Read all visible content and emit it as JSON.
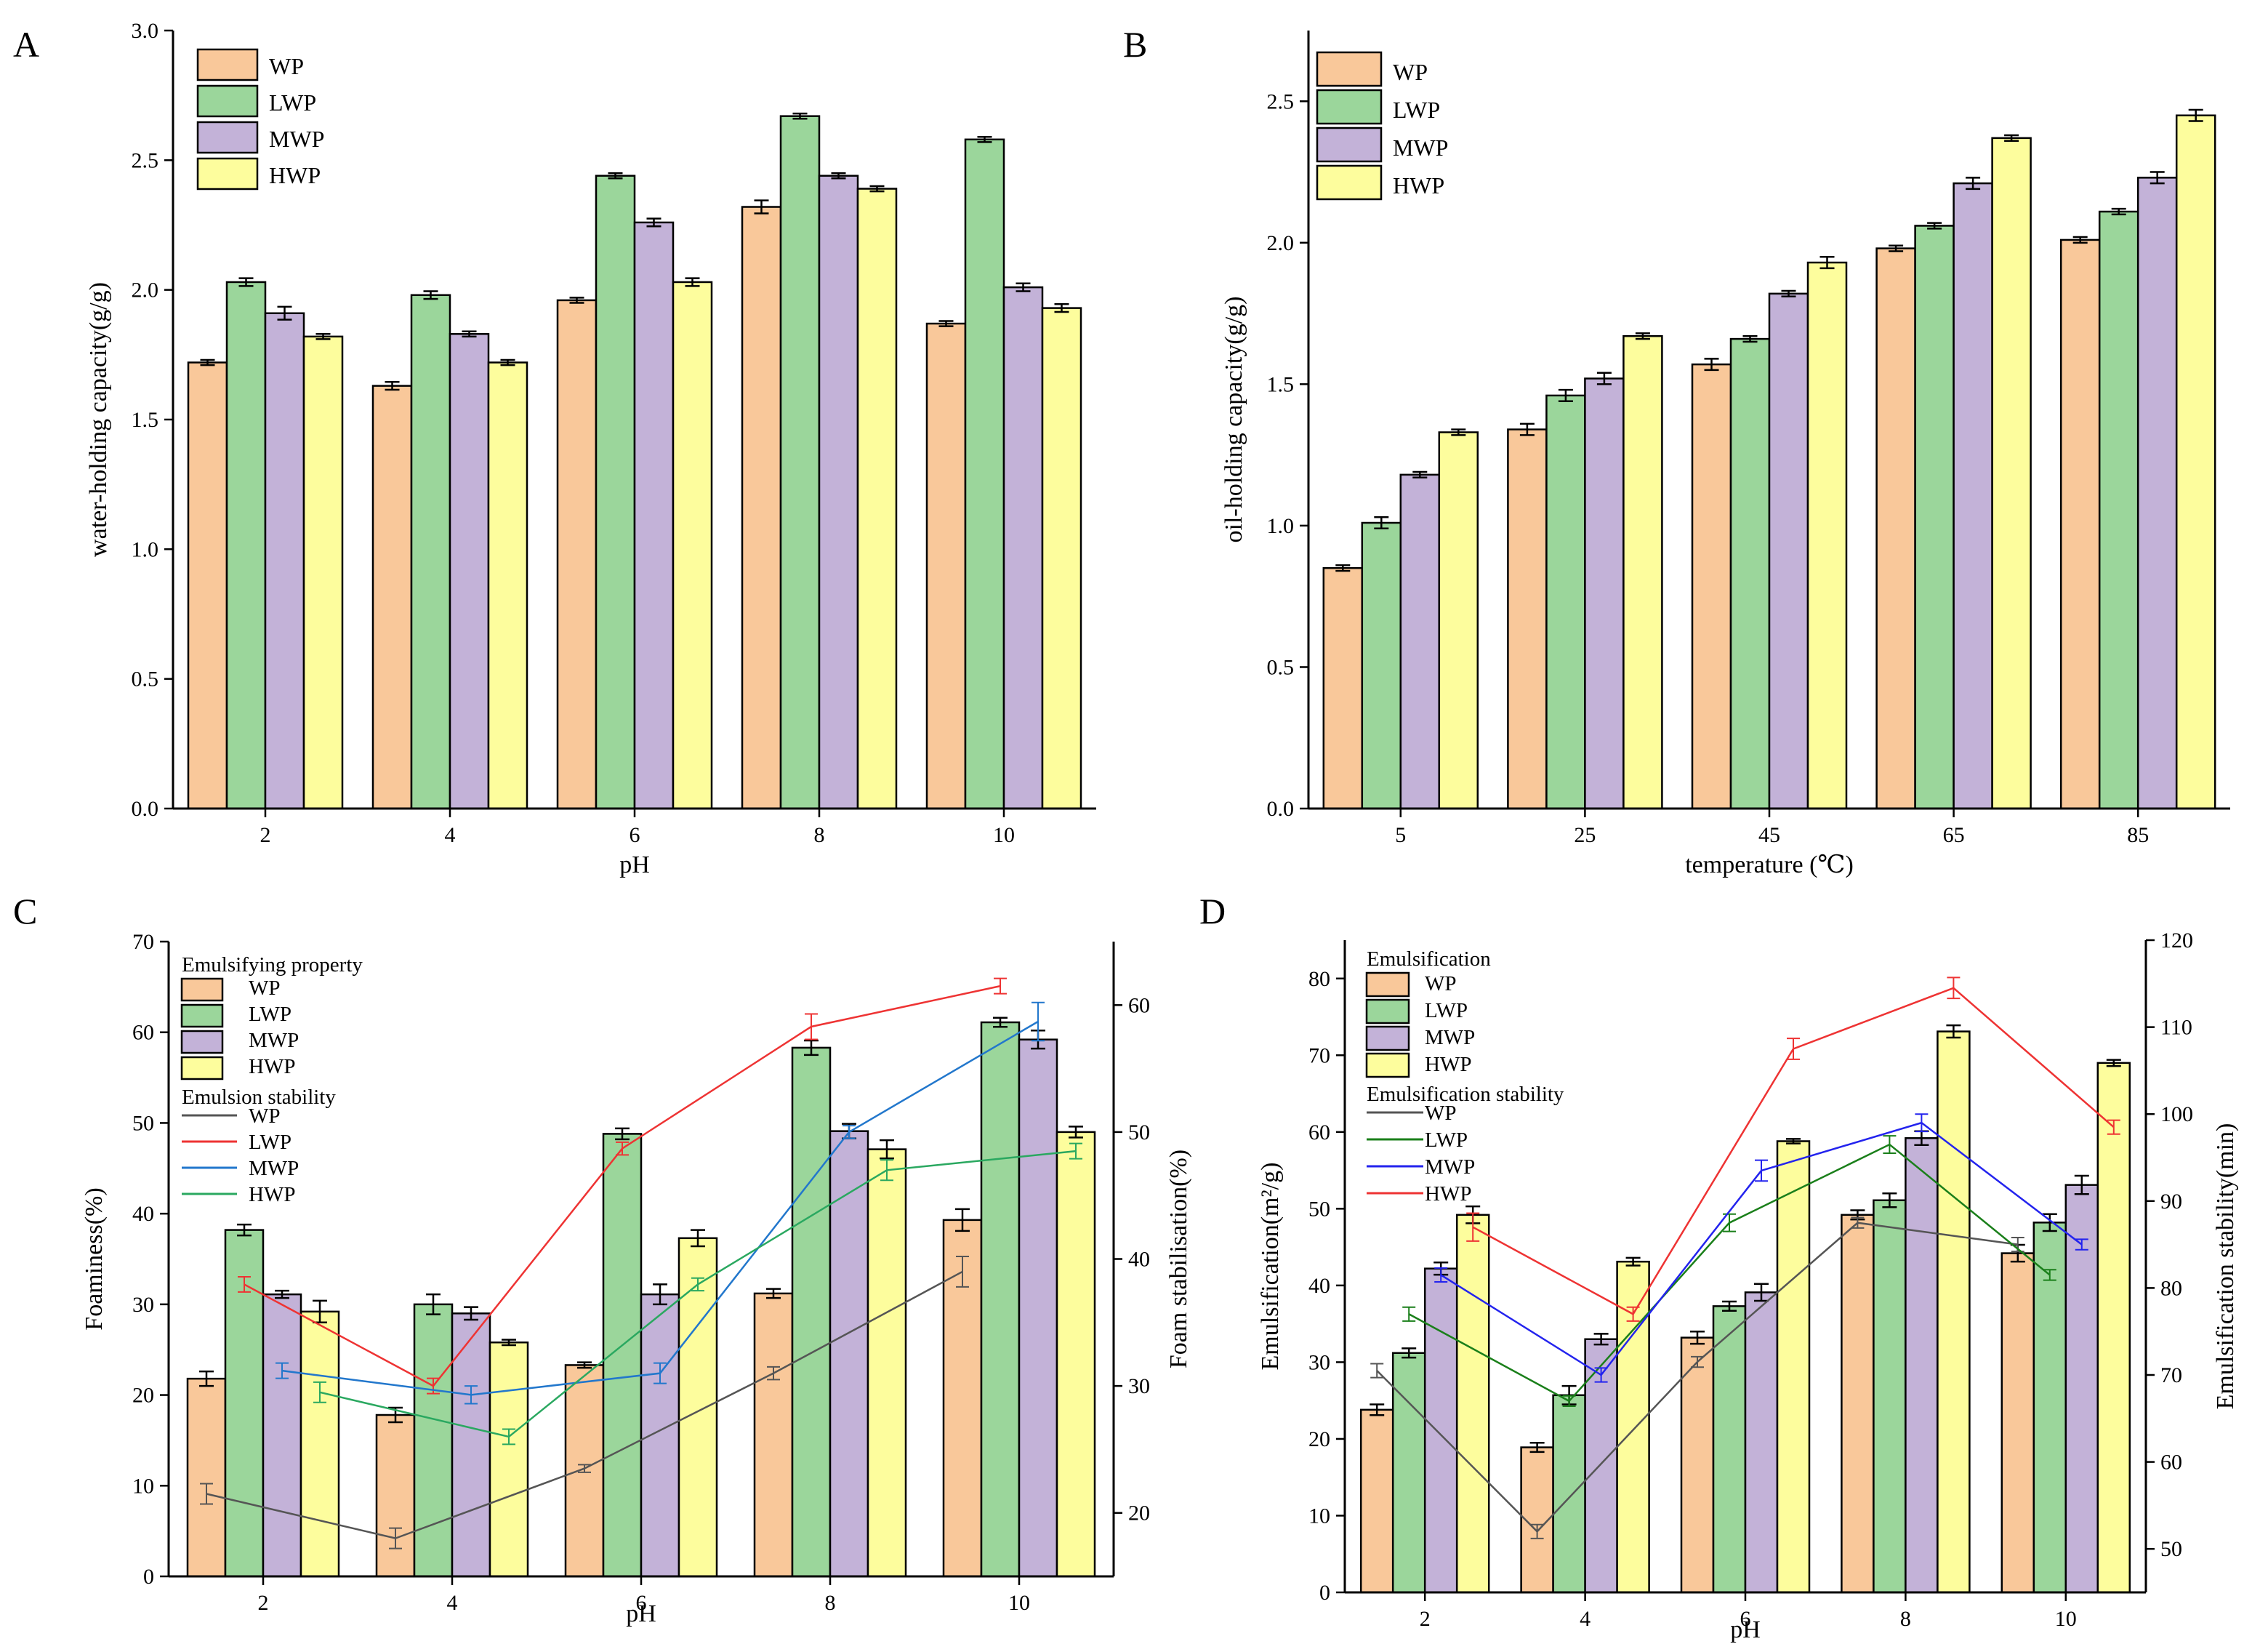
{
  "colors": {
    "WP": "#f9c89a",
    "LWP": "#9bd69b",
    "MWP": "#c3b2d8",
    "HWP": "#fdfd9d",
    "line_C_WP": "#555555",
    "line_C_LWP": "#ee3333",
    "line_C_MWP": "#2277cc",
    "line_C_HWP": "#2aa860",
    "line_D_WP": "#555555",
    "line_D_LWP": "#1a7f1a",
    "line_D_MWP": "#2323ee",
    "line_D_HWP": "#ee3333"
  },
  "chart_data": [
    {
      "panel": "A",
      "type": "bar",
      "xlabel": "pH",
      "ylabel": "water-holding capacity(g/g)",
      "categories": [
        "2",
        "4",
        "6",
        "8",
        "10"
      ],
      "ylim": [
        0,
        3.0
      ],
      "yticks": [
        "0.0",
        "0.5",
        "1.0",
        "1.5",
        "2.0",
        "2.5",
        "3.0"
      ],
      "series": [
        {
          "name": "WP",
          "values": [
            1.72,
            1.63,
            1.96,
            2.32,
            1.87
          ],
          "errors": [
            0.01,
            0.015,
            0.01,
            0.025,
            0.01
          ]
        },
        {
          "name": "LWP",
          "values": [
            2.03,
            1.98,
            2.44,
            2.67,
            2.58
          ],
          "errors": [
            0.015,
            0.015,
            0.01,
            0.01,
            0.01
          ]
        },
        {
          "name": "MWP",
          "values": [
            1.91,
            1.83,
            2.26,
            2.44,
            2.01
          ],
          "errors": [
            0.025,
            0.01,
            0.015,
            0.01,
            0.015
          ]
        },
        {
          "name": "HWP",
          "values": [
            1.82,
            1.72,
            2.03,
            2.39,
            1.93
          ],
          "errors": [
            0.01,
            0.01,
            0.015,
            0.01,
            0.015
          ]
        }
      ]
    },
    {
      "panel": "B",
      "type": "bar",
      "xlabel": "temperature (℃)",
      "ylabel": "oil-holding capacity(g/g)",
      "categories": [
        "5",
        "25",
        "45",
        "65",
        "85"
      ],
      "ylim": [
        0,
        2.75
      ],
      "yticks": [
        "0.0",
        "0.5",
        "1.0",
        "1.5",
        "2.0",
        "2.5"
      ],
      "series": [
        {
          "name": "WP",
          "values": [
            0.85,
            1.34,
            1.57,
            1.98,
            2.01
          ],
          "errors": [
            0.01,
            0.02,
            0.02,
            0.01,
            0.01
          ]
        },
        {
          "name": "LWP",
          "values": [
            1.01,
            1.46,
            1.66,
            2.06,
            2.11
          ],
          "errors": [
            0.02,
            0.02,
            0.01,
            0.01,
            0.01
          ]
        },
        {
          "name": "MWP",
          "values": [
            1.18,
            1.52,
            1.82,
            2.21,
            2.23
          ],
          "errors": [
            0.01,
            0.02,
            0.01,
            0.02,
            0.02
          ]
        },
        {
          "name": "HWP",
          "values": [
            1.33,
            1.67,
            1.93,
            2.37,
            2.45
          ],
          "errors": [
            0.01,
            0.01,
            0.02,
            0.01,
            0.02
          ]
        }
      ]
    },
    {
      "panel": "C",
      "type": "bar",
      "xlabel": "pH",
      "ylabel": "Foaminess(%)",
      "y2label": "Foam stabilisation(%)",
      "categories": [
        "2",
        "4",
        "6",
        "8",
        "10"
      ],
      "ylim": [
        0,
        70
      ],
      "yticks": [
        "0",
        "10",
        "20",
        "30",
        "40",
        "50",
        "60",
        "70"
      ],
      "y2lim": [
        15,
        65
      ],
      "y2ticks": [
        "20",
        "30",
        "40",
        "50",
        "60"
      ],
      "legend_bar_title": "Emulsifying property",
      "legend_line_title": "Emulsion stability",
      "series": [
        {
          "name": "WP",
          "values": [
            21.8,
            17.8,
            23.3,
            31.2,
            39.3
          ],
          "errors": [
            0.8,
            0.8,
            0.3,
            0.5,
            1.2
          ]
        },
        {
          "name": "LWP",
          "values": [
            38.2,
            30.0,
            48.8,
            58.3,
            61.1
          ],
          "errors": [
            0.6,
            1.1,
            0.6,
            0.8,
            0.5
          ]
        },
        {
          "name": "MWP",
          "values": [
            31.1,
            29.0,
            31.1,
            49.1,
            59.2
          ],
          "errors": [
            0.4,
            0.7,
            1.1,
            0.8,
            1.0
          ]
        },
        {
          "name": "HWP",
          "values": [
            29.2,
            25.8,
            37.3,
            47.1,
            49.0
          ],
          "errors": [
            1.2,
            0.3,
            0.9,
            1.0,
            0.6
          ]
        }
      ],
      "lines": [
        {
          "name": "WP",
          "values": [
            21.5,
            18.0,
            23.5,
            31.0,
            39.0
          ],
          "errors": [
            0.8,
            0.8,
            0.3,
            0.5,
            1.2
          ]
        },
        {
          "name": "LWP",
          "values": [
            38.0,
            30.0,
            48.7,
            58.3,
            61.5
          ],
          "errors": [
            0.6,
            0.6,
            0.5,
            1.0,
            0.6
          ]
        },
        {
          "name": "MWP",
          "values": [
            31.2,
            29.3,
            31.0,
            50.0,
            58.7
          ],
          "errors": [
            0.6,
            0.7,
            0.8,
            0.5,
            1.5
          ]
        },
        {
          "name": "HWP",
          "values": [
            29.5,
            26.0,
            38.0,
            47.0,
            48.5
          ],
          "errors": [
            0.8,
            0.6,
            0.5,
            0.8,
            0.6
          ]
        }
      ]
    },
    {
      "panel": "D",
      "type": "bar",
      "xlabel": "pH",
      "ylabel": "Emulsification(m²/g)",
      "y2label": "Emulsification stability(min)",
      "categories": [
        "2",
        "4",
        "6",
        "8",
        "10"
      ],
      "ylim": [
        0,
        85
      ],
      "yticks": [
        "0",
        "10",
        "20",
        "30",
        "40",
        "50",
        "60",
        "70",
        "80"
      ],
      "y2lim": [
        45,
        120
      ],
      "y2ticks": [
        "50",
        "60",
        "70",
        "80",
        "90",
        "100",
        "110",
        "120"
      ],
      "legend_bar_title": "Emulsification",
      "legend_line_title": "Emulsification stability",
      "series": [
        {
          "name": "WP",
          "values": [
            23.8,
            18.9,
            33.2,
            49.2,
            44.2
          ],
          "errors": [
            0.7,
            0.6,
            0.8,
            0.6,
            1.1
          ]
        },
        {
          "name": "LWP",
          "values": [
            31.2,
            25.7,
            37.3,
            51.1,
            48.2
          ],
          "errors": [
            0.6,
            1.2,
            0.6,
            0.9,
            1.1
          ]
        },
        {
          "name": "MWP",
          "values": [
            42.2,
            33.0,
            39.1,
            59.2,
            53.1
          ],
          "errors": [
            0.8,
            0.7,
            1.1,
            0.9,
            1.2
          ]
        },
        {
          "name": "HWP",
          "values": [
            49.2,
            43.1,
            58.8,
            73.1,
            69.0
          ],
          "errors": [
            1.1,
            0.5,
            0.3,
            0.8,
            0.4
          ]
        }
      ],
      "lines": [
        {
          "name": "WP",
          "values": [
            70.5,
            52.0,
            71.5,
            87.5,
            85.0
          ],
          "errors": [
            0.8,
            0.8,
            0.6,
            0.6,
            0.8
          ]
        },
        {
          "name": "LWP",
          "values": [
            77.0,
            67.0,
            87.5,
            96.5,
            81.5
          ],
          "errors": [
            0.8,
            0.6,
            1.0,
            1.0,
            0.6
          ]
        },
        {
          "name": "MWP",
          "values": [
            81.5,
            70.0,
            93.5,
            99.0,
            85.0
          ],
          "errors": [
            0.8,
            0.8,
            1.2,
            1.0,
            0.6
          ]
        },
        {
          "name": "HWP",
          "values": [
            87.0,
            77.0,
            107.5,
            114.5,
            98.5
          ],
          "errors": [
            1.6,
            0.8,
            1.2,
            1.2,
            0.8
          ]
        }
      ]
    }
  ]
}
